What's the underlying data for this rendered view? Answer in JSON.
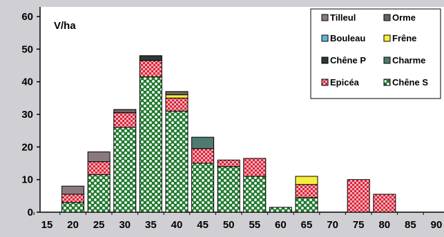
{
  "chart_data": {
    "type": "bar",
    "stacked": true,
    "title": "",
    "xlabel": "",
    "ylabel": "V/ha",
    "ylim": [
      0,
      60
    ],
    "yticks": [
      0,
      10,
      20,
      30,
      40,
      50,
      60
    ],
    "grid": false,
    "legend_position": "top-right",
    "categories": [
      "15",
      "20",
      "25",
      "30",
      "35",
      "40",
      "45",
      "50",
      "55",
      "60",
      "65",
      "70",
      "75",
      "80",
      "85",
      "90"
    ],
    "series": [
      {
        "name": "Chêne S",
        "color": "#1f7a2e",
        "values": [
          0,
          3,
          11.5,
          26,
          41.5,
          31,
          15,
          14,
          11,
          1.5,
          4.5,
          0,
          0,
          0,
          0,
          0
        ]
      },
      {
        "name": "Epicéa",
        "color": "#d8253a",
        "values": [
          0,
          2.5,
          4,
          4.5,
          5,
          4,
          4.5,
          2,
          5.5,
          0,
          4,
          0,
          10,
          5.5,
          0,
          0
        ]
      },
      {
        "name": "Charme",
        "color": "#4e7a70",
        "values": [
          0,
          0,
          0,
          0,
          0,
          0,
          3.5,
          0,
          0,
          0,
          0,
          0,
          0,
          0,
          0,
          0
        ]
      },
      {
        "name": "Chêne P",
        "color": "#2d3a36",
        "values": [
          0,
          0,
          0,
          0,
          1.5,
          0,
          0,
          0,
          0,
          0,
          0,
          0,
          0,
          0,
          0,
          0
        ]
      },
      {
        "name": "Frêne",
        "color": "#f6ee3c",
        "values": [
          0,
          0,
          0,
          0,
          0,
          1,
          0,
          0,
          0,
          0,
          2.5,
          0,
          0,
          0,
          0,
          0
        ]
      },
      {
        "name": "Bouleau",
        "color": "#5fb7cf",
        "values": [
          0,
          0,
          0,
          0,
          0,
          0,
          0,
          0,
          0,
          0,
          0,
          0,
          0,
          0,
          0,
          0
        ]
      },
      {
        "name": "Orme",
        "color": "#6b6262",
        "values": [
          0,
          0,
          0,
          1,
          0,
          1,
          0,
          0,
          0,
          0,
          0,
          0,
          0,
          0,
          0,
          0
        ]
      },
      {
        "name": "Tilleul",
        "color": "#8a7a80",
        "values": [
          0,
          2.5,
          3,
          0,
          0,
          0,
          0,
          0,
          0,
          0,
          0,
          0,
          0,
          0,
          0,
          0
        ]
      }
    ],
    "legend": [
      "Tilleul",
      "Orme",
      "Bouleau",
      "Frêne",
      "Chêne P",
      "Charme",
      "Epicéa",
      "Chêne S"
    ]
  }
}
